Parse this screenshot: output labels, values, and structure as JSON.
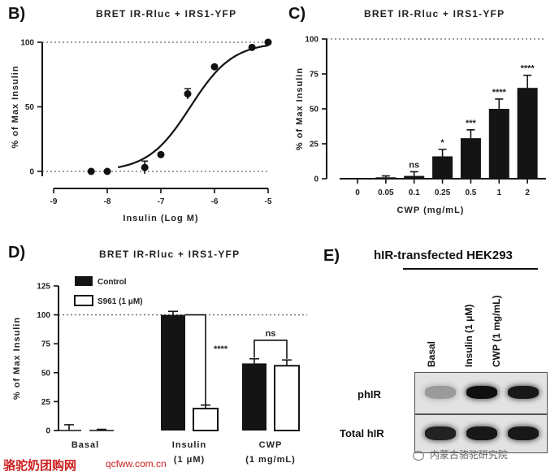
{
  "panels": {
    "B": {
      "label": "B)",
      "chart_data": {
        "type": "scatter",
        "title": "BRET IR-Rluc + IRS1-YFP",
        "xlabel": "Insulin (Log M)",
        "ylabel": "% of Max Insulin",
        "xlim": [
          -9,
          -5
        ],
        "ylim": [
          0,
          100
        ],
        "xticks": [
          "-9",
          "-8",
          "-7",
          "-6",
          "-5"
        ],
        "yticks": [
          "0",
          "50",
          "100"
        ],
        "points": [
          {
            "x": -8.3,
            "y": 0,
            "err": 0
          },
          {
            "x": -8.0,
            "y": 0,
            "err": 0
          },
          {
            "x": -7.3,
            "y": 3,
            "err": 5
          },
          {
            "x": -7.0,
            "y": 13,
            "err": 0
          },
          {
            "x": -6.5,
            "y": 60,
            "err": 4
          },
          {
            "x": -6.0,
            "y": 81,
            "err": 0
          },
          {
            "x": -5.3,
            "y": 96,
            "err": 0
          },
          {
            "x": -5.0,
            "y": 100,
            "err": 0
          }
        ],
        "fit": {
          "bottom": 0,
          "top": 100,
          "logEC50": -6.45,
          "hill": 1.1
        }
      }
    },
    "C": {
      "label": "C)",
      "chart_data": {
        "type": "bar",
        "title": "BRET IR-Rluc + IRS1-YFP",
        "xlabel": "CWP (mg/mL)",
        "ylabel": "% of Max Insulin",
        "ylim": [
          0,
          100
        ],
        "yticks": [
          "0",
          "25",
          "50",
          "75",
          "100"
        ],
        "categories": [
          "0",
          "0.05",
          "0.1",
          "0.25",
          "0.5",
          "1",
          "2"
        ],
        "values": [
          0,
          1,
          2,
          16,
          29,
          50,
          65
        ],
        "errors": [
          0,
          1,
          3,
          5,
          6,
          7,
          9
        ],
        "significance": [
          "",
          "",
          "ns",
          "*",
          "***",
          "****",
          "****"
        ]
      }
    },
    "D": {
      "label": "D)",
      "chart_data": {
        "type": "bar",
        "title": "BRET IR-Rluc + IRS1-YFP",
        "xlabel": "",
        "ylabel": "% of Max Insulin",
        "ylim": [
          0,
          125
        ],
        "yticks": [
          "0",
          "25",
          "50",
          "75",
          "100",
          "125"
        ],
        "categories": [
          "Basal",
          "Insulin (1 μM)",
          "CWP (1 mg/mL)"
        ],
        "category_lines": [
          [
            "Basal"
          ],
          [
            "Insulin",
            "(1 μM)"
          ],
          [
            "CWP",
            "(1 mg/mL)"
          ]
        ],
        "series": [
          {
            "name": "Control",
            "values": [
              0,
              100,
              58
            ],
            "errors": [
              5,
              3,
              4
            ]
          },
          {
            "name": "S961 (1 μM)",
            "values": [
              0,
              19,
              56
            ],
            "errors": [
              1,
              3,
              5
            ]
          }
        ],
        "annotations": [
          {
            "text": "****",
            "between": [
              "Insulin (1 μM)",
              "Control",
              "S961 (1 μM)"
            ]
          },
          {
            "text": "ns",
            "between": [
              "CWP (1 mg/mL)",
              "Control",
              "S961 (1 μM)"
            ]
          }
        ]
      }
    },
    "E": {
      "label": "E)",
      "title": "hIR-transfected HEK293",
      "lanes": [
        "Basal",
        "Insulin (1 μM)",
        "CWP (1 mg/mL)"
      ],
      "rows": [
        {
          "label": "phIR",
          "intensity": [
            0.25,
            1.0,
            0.95
          ]
        },
        {
          "label": "Total hIR",
          "intensity": [
            0.9,
            0.95,
            0.95
          ]
        }
      ]
    }
  },
  "footer": {
    "site_name": "骆驼奶团购网",
    "site_url": "qcfww.com.cn",
    "watermark": "内蒙古骆驼研究院"
  },
  "colors": {
    "bar_fill": "#141414",
    "axis": "#111111",
    "footer_red": "#cc1f1f"
  }
}
